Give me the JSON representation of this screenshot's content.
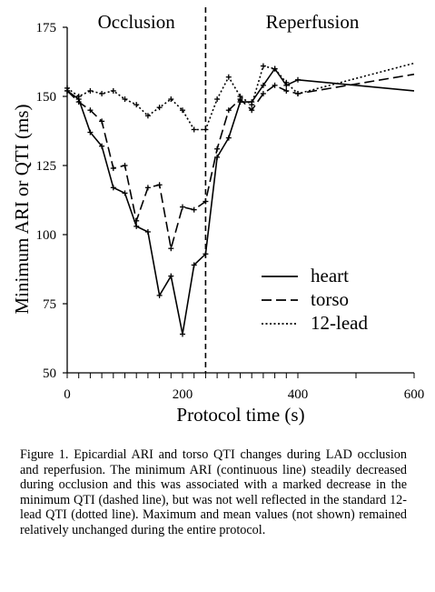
{
  "chart_data": {
    "type": "line",
    "phase_labels": [
      "Occlusion",
      "Reperfusion"
    ],
    "phase_boundary_x": 240,
    "xlabel": "Protocol time (s)",
    "ylabel": "Minimum ARI or QTI (ms)",
    "xlim": [
      0,
      600
    ],
    "ylim": [
      50,
      175
    ],
    "x_scale": "piecewise-linear",
    "x_tick_labels": [
      {
        "value": 0,
        "label": "0"
      },
      {
        "value": 200,
        "label": "200"
      },
      {
        "value": 400,
        "label": "400"
      },
      {
        "value": 600,
        "label": "600"
      }
    ],
    "y_ticks": [
      50,
      75,
      100,
      125,
      150,
      175
    ],
    "legend_position": "lower-right",
    "series": [
      {
        "name": "heart",
        "style": "solid",
        "points": [
          [
            0,
            152
          ],
          [
            20,
            149
          ],
          [
            40,
            137
          ],
          [
            60,
            132
          ],
          [
            80,
            117
          ],
          [
            100,
            115
          ],
          [
            120,
            103
          ],
          [
            140,
            101
          ],
          [
            160,
            78
          ],
          [
            180,
            85
          ],
          [
            200,
            64
          ],
          [
            220,
            89
          ],
          [
            240,
            93
          ],
          [
            260,
            128
          ],
          [
            280,
            135
          ],
          [
            300,
            148
          ],
          [
            320,
            148
          ],
          [
            340,
            154
          ],
          [
            360,
            160
          ],
          [
            380,
            154
          ],
          [
            400,
            156
          ],
          [
            600,
            152
          ]
        ]
      },
      {
        "name": "torso",
        "style": "dashed",
        "points": [
          [
            0,
            152
          ],
          [
            20,
            148
          ],
          [
            40,
            145
          ],
          [
            60,
            141
          ],
          [
            80,
            124
          ],
          [
            100,
            125
          ],
          [
            120,
            105
          ],
          [
            140,
            117
          ],
          [
            160,
            118
          ],
          [
            180,
            95
          ],
          [
            200,
            110
          ],
          [
            220,
            109
          ],
          [
            240,
            112
          ],
          [
            260,
            131
          ],
          [
            280,
            145
          ],
          [
            300,
            149
          ],
          [
            320,
            145
          ],
          [
            340,
            151
          ],
          [
            360,
            154
          ],
          [
            380,
            152
          ],
          [
            400,
            151
          ],
          [
            600,
            158
          ]
        ]
      },
      {
        "name": "12-lead",
        "style": "dotted",
        "points": [
          [
            0,
            153
          ],
          [
            20,
            150
          ],
          [
            40,
            152
          ],
          [
            60,
            151
          ],
          [
            80,
            152
          ],
          [
            100,
            149
          ],
          [
            120,
            147
          ],
          [
            140,
            143
          ],
          [
            160,
            146
          ],
          [
            180,
            149
          ],
          [
            200,
            145
          ],
          [
            220,
            138
          ],
          [
            240,
            138
          ],
          [
            260,
            149
          ],
          [
            280,
            157
          ],
          [
            300,
            150
          ],
          [
            320,
            147
          ],
          [
            340,
            161
          ],
          [
            360,
            160
          ],
          [
            380,
            155
          ],
          [
            400,
            151
          ],
          [
            600,
            162
          ]
        ]
      }
    ]
  },
  "caption": "Figure 1. Epicardial ARI and torso QTI changes during LAD occlusion and reperfusion. The minimum ARI (continuous line) steadily decreased during occlusion and this was associated with a marked decrease in the minimum QTI (dashed line), but was not well reflected in the standard 12-lead QTI (dotted line). Maximum and mean values (not shown) remained relatively unchanged during the entire protocol."
}
